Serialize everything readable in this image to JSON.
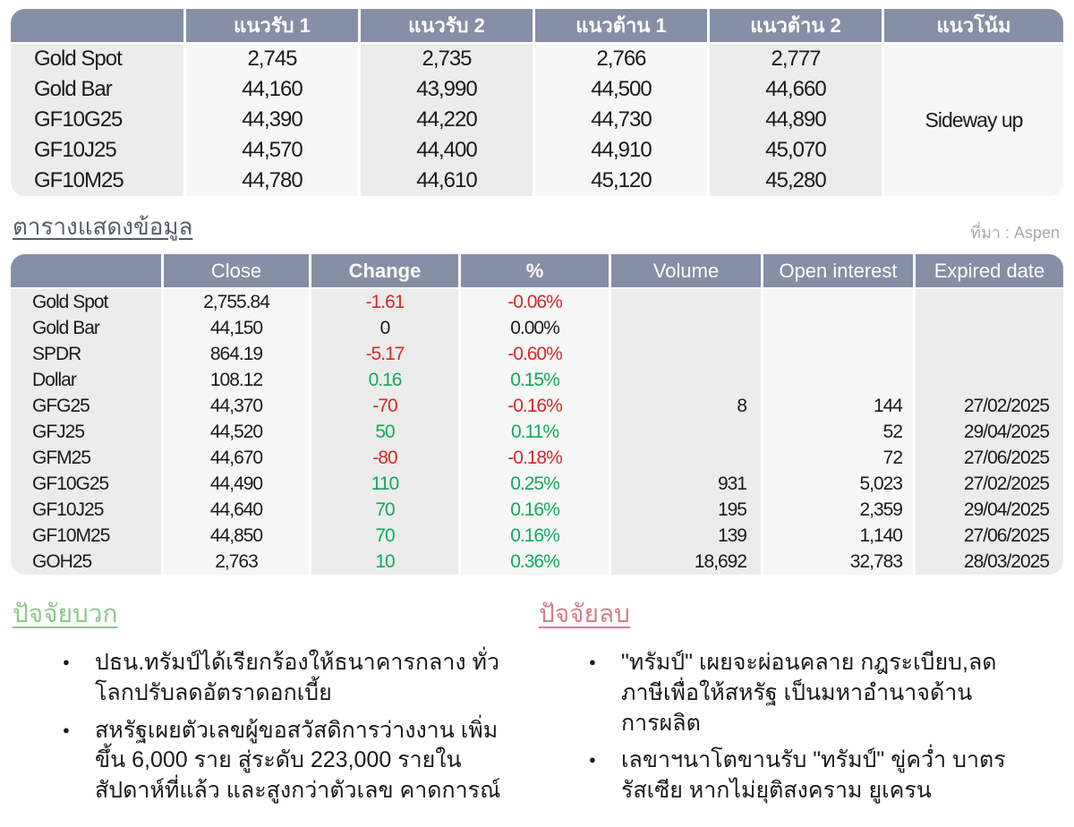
{
  "colors": {
    "header_bg": "#868fa5",
    "column_gray": "#ececec",
    "column_light": "#f7f7f7",
    "positive_value": "#12a95c",
    "negative_value": "#d42a2a",
    "section_title": "#565d6e",
    "source_text": "#a9a9a9",
    "positive_title": "#8bc98b",
    "negative_title": "#d3808a"
  },
  "levels_table": {
    "headers": [
      "",
      "แนวรับ 1",
      "แนวรับ 2",
      "แนวต้าน 1",
      "แนวต้าน 2",
      "แนวโน้ม"
    ],
    "trend": "Sideway up",
    "rows": [
      {
        "name": "Gold Spot",
        "values": [
          "2,745",
          "2,735",
          "2,766",
          "2,777"
        ]
      },
      {
        "name": "Gold Bar",
        "values": [
          "44,160",
          "43,990",
          "44,500",
          "44,660"
        ]
      },
      {
        "name": "GF10G25",
        "values": [
          "44,390",
          "44,220",
          "44,730",
          "44,890"
        ]
      },
      {
        "name": "GF10J25",
        "values": [
          "44,570",
          "44,400",
          "44,910",
          "45,070"
        ]
      },
      {
        "name": "GF10M25",
        "values": [
          "44,780",
          "44,610",
          "45,120",
          "45,280"
        ]
      }
    ]
  },
  "data_section": {
    "title": "ตารางแสดงข้อมูล",
    "source": "ที่มา : Aspen"
  },
  "data_table": {
    "headers": [
      "",
      "Close",
      "Change",
      "%",
      "Volume",
      "Open interest",
      "Expired date"
    ],
    "rows": [
      {
        "name": "Gold Spot",
        "close": "2,755.84",
        "change": "-1.61",
        "pct": "-0.06%",
        "dir": "down",
        "volume": "",
        "oi": "",
        "expiry": ""
      },
      {
        "name": "Gold Bar",
        "close": "44,150",
        "change": "0",
        "pct": "0.00%",
        "dir": "flat",
        "volume": "",
        "oi": "",
        "expiry": ""
      },
      {
        "name": "SPDR",
        "close": "864.19",
        "change": "-5.17",
        "pct": "-0.60%",
        "dir": "down",
        "volume": "",
        "oi": "",
        "expiry": ""
      },
      {
        "name": "Dollar",
        "close": "108.12",
        "change": "0.16",
        "pct": "0.15%",
        "dir": "up",
        "volume": "",
        "oi": "",
        "expiry": ""
      },
      {
        "name": "GFG25",
        "close": "44,370",
        "change": "-70",
        "pct": "-0.16%",
        "dir": "down",
        "volume": "8",
        "oi": "144",
        "expiry": "27/02/2025"
      },
      {
        "name": "GFJ25",
        "close": "44,520",
        "change": "50",
        "pct": "0.11%",
        "dir": "up",
        "volume": "",
        "oi": "52",
        "expiry": "29/04/2025"
      },
      {
        "name": "GFM25",
        "close": "44,670",
        "change": "-80",
        "pct": "-0.18%",
        "dir": "down",
        "volume": "",
        "oi": "72",
        "expiry": "27/06/2025"
      },
      {
        "name": "GF10G25",
        "close": "44,490",
        "change": "110",
        "pct": "0.25%",
        "dir": "up",
        "volume": "931",
        "oi": "5,023",
        "expiry": "27/02/2025"
      },
      {
        "name": "GF10J25",
        "close": "44,640",
        "change": "70",
        "pct": "0.16%",
        "dir": "up",
        "volume": "195",
        "oi": "2,359",
        "expiry": "29/04/2025"
      },
      {
        "name": "GF10M25",
        "close": "44,850",
        "change": "70",
        "pct": "0.16%",
        "dir": "up",
        "volume": "139",
        "oi": "1,140",
        "expiry": "27/06/2025"
      },
      {
        "name": "GOH25",
        "close": "2,763",
        "change": "10",
        "pct": "0.36%",
        "dir": "up",
        "volume": "18,692",
        "oi": "32,783",
        "expiry": "28/03/2025"
      }
    ]
  },
  "factors": {
    "positive": {
      "title": "ปัจจัยบวก",
      "items": [
        "ปธน.ทรัมป์ได้เรียกร้องให้ธนาคารกลาง ทั่วโลกปรับลดอัตราดอกเบี้ย",
        "สหรัฐเผยตัวเลขผู้ขอสวัสดิการว่างงาน เพิ่มขึ้น 6,000 ราย สู่ระดับ 223,000 รายในสัปดาห์ที่แล้ว และสูงกว่าตัวเลข คาดการณ์"
      ]
    },
    "negative": {
      "title": "ปัจจัยลบ",
      "items": [
        "\"ทรัมป์\" เผยจะผ่อนคลาย กฎระเบียบ,ลดภาษีเพื่อให้สหรัฐ เป็นมหาอำนาจด้านการผลิต",
        "เลขาฯนาโตขานรับ \"ทรัมป์\" ขู่คว่ำ บาตรรัสเซีย หากไม่ยุติสงคราม ยูเครน"
      ]
    }
  }
}
